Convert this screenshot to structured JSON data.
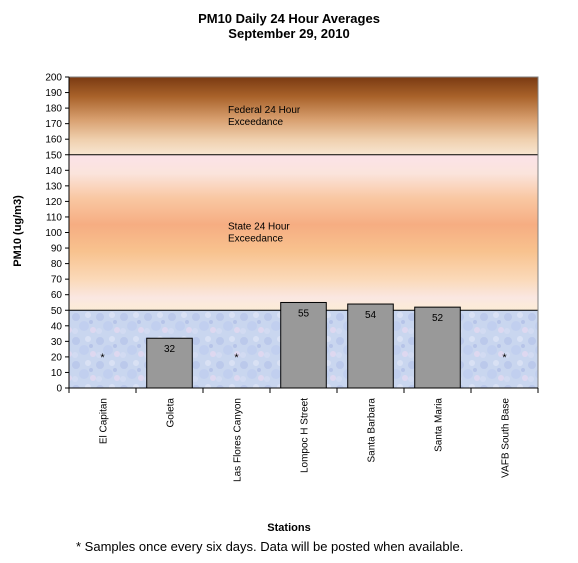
{
  "chart_data": {
    "type": "bar",
    "title": "PM10 Daily 24 Hour Averages",
    "subtitle": "September 29, 2010",
    "xlabel": "Stations",
    "ylabel": "PM10 (ug/m3)",
    "ylim": [
      0,
      200
    ],
    "ytick_step": 10,
    "categories": [
      "El Capitan",
      "Goleta",
      "Las Flores Canyon",
      "Lompoc H Street",
      "Santa Barbara",
      "Santa Maria",
      "VAFB South Base"
    ],
    "values": [
      null,
      32,
      null,
      55,
      54,
      52,
      null
    ],
    "value_labels": [
      "*",
      "32",
      "*",
      "55",
      "54",
      "52",
      "*"
    ],
    "thresholds": [
      {
        "value": 150,
        "label_line1": "Federal 24 Hour",
        "label_line2": "Exceedance"
      },
      {
        "value": 50,
        "label_line1": "State 24 Hour",
        "label_line2": "Exceedance"
      }
    ],
    "bar_color": "#999999",
    "grid": false
  },
  "footnote": "*  Samples once every six days.  Data will be posted when available."
}
